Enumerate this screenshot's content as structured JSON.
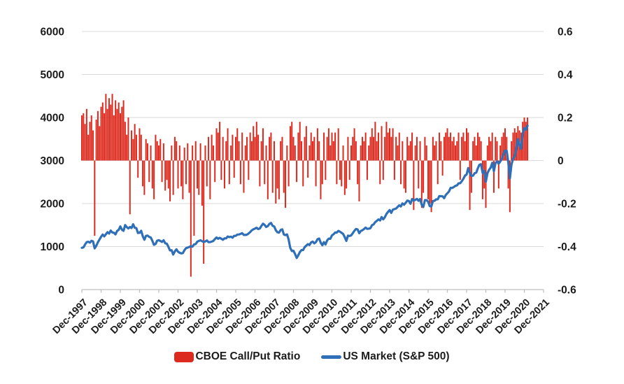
{
  "chart_data": {
    "type": "combo_bar_line",
    "title": "",
    "grid": true,
    "legend_position": "bottom",
    "x_axis": {
      "frequency": "monthly",
      "start": "Dec-1997",
      "end": "Feb-2021",
      "tick_labels": [
        "Dec-1997",
        "Dec-1998",
        "Dec-1999",
        "Dec-2000",
        "Dec-2001",
        "Dec-2002",
        "Dec-2003",
        "Dec-2004",
        "Dec-2005",
        "Dec-2006",
        "Dec-2007",
        "Dec-2008",
        "Dec-2009",
        "Dec-2010",
        "Dec-2011",
        "Dec-2012",
        "Dec-2013",
        "Dec-2014",
        "Dec-2015",
        "Dec-2016",
        "Dec-2017",
        "Dec-2018",
        "Dec-2019",
        "Dec-2020",
        "Dec-2021"
      ],
      "months_per_tick": 12,
      "total_months_span": 288
    },
    "left_axis": {
      "min": 0,
      "max": 6000,
      "tick_labels": [
        "0",
        "1000",
        "2000",
        "3000",
        "4000",
        "5000",
        "6000"
      ]
    },
    "right_axis": {
      "min": -0.6,
      "max": 0.6,
      "tick_labels": [
        "0.6",
        "0.4",
        "0.2",
        "0",
        "-0.2",
        "-0.4",
        "-0.6"
      ]
    },
    "colors": {
      "bar": "#dd2a1e",
      "line": "#2f6fb8",
      "gridline": "#d9d9d9",
      "axis_line": "#bfbfbf",
      "text": "#1c1c1c"
    },
    "series": [
      {
        "name": "CBOE Call/Put Ratio",
        "type": "bar",
        "axis": "right",
        "color": "#dd2a1e",
        "values": [
          0.21,
          0.22,
          0.17,
          0.24,
          0.12,
          0.18,
          0.21,
          0.14,
          -0.35,
          0.19,
          0.23,
          0.16,
          0.25,
          0.27,
          0.22,
          0.31,
          0.24,
          0.29,
          0.26,
          0.31,
          0.21,
          0.28,
          0.24,
          0.27,
          0.22,
          0.25,
          0.28,
          0.18,
          0.12,
          0.2,
          -0.25,
          0.14,
          0.1,
          0.17,
          0.12,
          -0.08,
          0.15,
          0.12,
          -0.12,
          -0.16,
          0.1,
          0.08,
          -0.1,
          0.07,
          -0.13,
          -0.18,
          0.12,
          0.09,
          0.07,
          0.1,
          -0.1,
          0.08,
          -0.14,
          -0.09,
          -0.13,
          -0.19,
          0.07,
          -0.16,
          0.11,
          0.09,
          -0.13,
          0.07,
          -0.12,
          -0.18,
          0.06,
          -0.11,
          0.08,
          -0.15,
          -0.54,
          0.07,
          -0.35,
          0.09,
          -0.13,
          -0.16,
          0.08,
          -0.21,
          -0.48,
          0.07,
          -0.12,
          0.11,
          -0.18,
          0.12,
          0.07,
          -0.1,
          0.15,
          0.13,
          0.18,
          -0.09,
          0.11,
          -0.13,
          0.09,
          0.15,
          -0.11,
          0.07,
          0.12,
          -0.08,
          0.11,
          0.15,
          0.09,
          -0.11,
          0.13,
          -0.15,
          0.07,
          0.11,
          -0.09,
          0.13,
          0.09,
          0.16,
          0.11,
          0.18,
          0.12,
          -0.12,
          0.09,
          0.15,
          -0.11,
          0.07,
          -0.18,
          0.11,
          0.13,
          -0.15,
          0.09,
          -0.2,
          -0.13,
          -0.18,
          0.09,
          0.11,
          -0.15,
          -0.22,
          0.07,
          -0.12,
          0.16,
          0.18,
          0.11,
          0.07,
          -0.1,
          0.13,
          0.18,
          0.09,
          -0.12,
          0.11,
          0.16,
          -0.08,
          0.07,
          0.13,
          0.09,
          0.11,
          -0.12,
          0.15,
          0.09,
          -0.18,
          -0.11,
          0.13,
          -0.09,
          0.11,
          0.15,
          0.07,
          0.13,
          0.09,
          0.13,
          -0.11,
          0.15,
          -0.09,
          -0.12,
          0.07,
          -0.16,
          -0.13,
          0.11,
          -0.09,
          0.07,
          0.11,
          0.15,
          0.09,
          -0.11,
          -0.19,
          0.07,
          0.11,
          0.09,
          0.13,
          -0.09,
          0.07,
          0.11,
          0.15,
          0.11,
          0.18,
          0.09,
          0.13,
          -0.11,
          0.16,
          -0.09,
          0.11,
          0.18,
          0.13,
          0.15,
          0.11,
          0.15,
          -0.09,
          0.11,
          0.07,
          0.13,
          -0.11,
          0.09,
          -0.13,
          -0.15,
          0.11,
          0.07,
          0.09,
          0.13,
          -0.23,
          0.07,
          0.11,
          -0.13,
          0.09,
          -0.22,
          -0.15,
          0.11,
          0.07,
          -0.18,
          -0.2,
          -0.24,
          0.11,
          0.07,
          0.09,
          -0.11,
          0.13,
          0.09,
          -0.07,
          0.11,
          0.13,
          0.15,
          0.11,
          0.13,
          0.09,
          0.11,
          0.07,
          0.09,
          0.13,
          -0.09,
          0.11,
          0.13,
          0.09,
          0.15,
          0.13,
          -0.23,
          -0.15,
          0.09,
          0.11,
          0.07,
          0.13,
          0.11,
          0.09,
          -0.18,
          -0.13,
          -0.22,
          0.07,
          0.11,
          0.09,
          0.13,
          -0.15,
          0.11,
          0.09,
          -0.13,
          0.07,
          0.11,
          0.13,
          0.15,
          0.11,
          -0.13,
          -0.24,
          0.09,
          0.13,
          0.15,
          0.13,
          0.16,
          0.14,
          0.13,
          0.18,
          0.2,
          0.18,
          0.2
        ]
      },
      {
        "name": "US Market (S&P 500)",
        "type": "line",
        "axis": "left",
        "color": "#2f6fb8",
        "values": [
          970,
          980,
          1049,
          1102,
          1112,
          1091,
          1134,
          1121,
          957,
          1017,
          1099,
          1164,
          1229,
          1280,
          1238,
          1286,
          1335,
          1302,
          1373,
          1329,
          1320,
          1283,
          1363,
          1389,
          1469,
          1394,
          1366,
          1499,
          1452,
          1421,
          1455,
          1431,
          1518,
          1437,
          1429,
          1315,
          1320,
          1366,
          1240,
          1160,
          1249,
          1256,
          1224,
          1211,
          1134,
          1041,
          1060,
          1139,
          1148,
          1130,
          1107,
          1147,
          1077,
          1067,
          990,
          911,
          916,
          815,
          886,
          936,
          880,
          856,
          841,
          848,
          917,
          964,
          975,
          990,
          1008,
          996,
          1051,
          1058,
          1112,
          1131,
          1145,
          1126,
          1107,
          1121,
          1141,
          1102,
          1104,
          1115,
          1130,
          1174,
          1212,
          1181,
          1204,
          1181,
          1157,
          1192,
          1191,
          1234,
          1220,
          1229,
          1207,
          1249,
          1248,
          1280,
          1281,
          1295,
          1311,
          1270,
          1270,
          1277,
          1304,
          1336,
          1378,
          1401,
          1418,
          1438,
          1407,
          1421,
          1482,
          1531,
          1503,
          1455,
          1474,
          1527,
          1549,
          1481,
          1468,
          1379,
          1331,
          1323,
          1386,
          1400,
          1280,
          1267,
          1283,
          1165,
          969,
          896,
          903,
          826,
          735,
          798,
          873,
          919,
          919,
          987,
          1021,
          1057,
          1036,
          1096,
          1115,
          1074,
          1104,
          1169,
          1187,
          1089,
          1031,
          1102,
          1049,
          1141,
          1183,
          1181,
          1258,
          1286,
          1327,
          1326,
          1364,
          1345,
          1321,
          1292,
          1219,
          1131,
          1253,
          1247,
          1258,
          1312,
          1366,
          1408,
          1398,
          1310,
          1362,
          1379,
          1407,
          1441,
          1412,
          1416,
          1426,
          1498,
          1515,
          1569,
          1598,
          1631,
          1606,
          1686,
          1633,
          1682,
          1757,
          1806,
          1848,
          1783,
          1859,
          1872,
          1884,
          1924,
          1960,
          1931,
          2003,
          1972,
          2018,
          2068,
          2059,
          1995,
          2105,
          2068,
          2086,
          2107,
          2063,
          2104,
          1972,
          1920,
          2079,
          2080,
          2044,
          1940,
          1932,
          2060,
          2065,
          2097,
          2099,
          2174,
          2171,
          2168,
          2126,
          2199,
          2239,
          2279,
          2364,
          2363,
          2384,
          2412,
          2423,
          2470,
          2472,
          2519,
          2575,
          2648,
          2674,
          2824,
          2714,
          2641,
          2648,
          2705,
          2718,
          2816,
          2902,
          2914,
          2712,
          2760,
          2507,
          2704,
          2784,
          2834,
          2946,
          2752,
          2942,
          2980,
          2926,
          2977,
          3038,
          3141,
          3231,
          3226,
          2954,
          2585,
          2912,
          3044,
          3100,
          3271,
          3500,
          3363,
          3270,
          3622,
          3756,
          3714,
          3811
        ]
      }
    ]
  },
  "legend": {
    "items": [
      {
        "label": "CBOE Call/Put Ratio",
        "swatch": "bar"
      },
      {
        "label": "US Market (S&P 500)",
        "swatch": "line"
      }
    ]
  }
}
